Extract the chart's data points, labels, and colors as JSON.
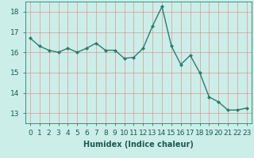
{
  "x": [
    0,
    1,
    2,
    3,
    4,
    5,
    6,
    7,
    8,
    9,
    10,
    11,
    12,
    13,
    14,
    15,
    16,
    17,
    18,
    19,
    20,
    21,
    22,
    23
  ],
  "y": [
    16.7,
    16.3,
    16.1,
    16.0,
    16.2,
    16.0,
    16.2,
    16.45,
    16.1,
    16.1,
    15.7,
    15.75,
    16.2,
    17.3,
    18.25,
    16.3,
    15.4,
    15.85,
    15.0,
    13.8,
    13.55,
    13.15,
    13.15,
    13.25
  ],
  "line_color": "#2a7d6e",
  "marker": "D",
  "marker_size": 2,
  "bg_color": "#cceee8",
  "grid_color": "#e08080",
  "xlabel": "Humidex (Indice chaleur)",
  "xlim": [
    -0.5,
    23.5
  ],
  "ylim": [
    12.5,
    18.5
  ],
  "yticks": [
    13,
    14,
    15,
    16,
    17,
    18
  ],
  "xticks": [
    0,
    1,
    2,
    3,
    4,
    5,
    6,
    7,
    8,
    9,
    10,
    11,
    12,
    13,
    14,
    15,
    16,
    17,
    18,
    19,
    20,
    21,
    22,
    23
  ],
  "xlabel_fontsize": 7,
  "tick_fontsize": 6.5,
  "line_width": 1.0,
  "spine_color": "#2a7d6e"
}
